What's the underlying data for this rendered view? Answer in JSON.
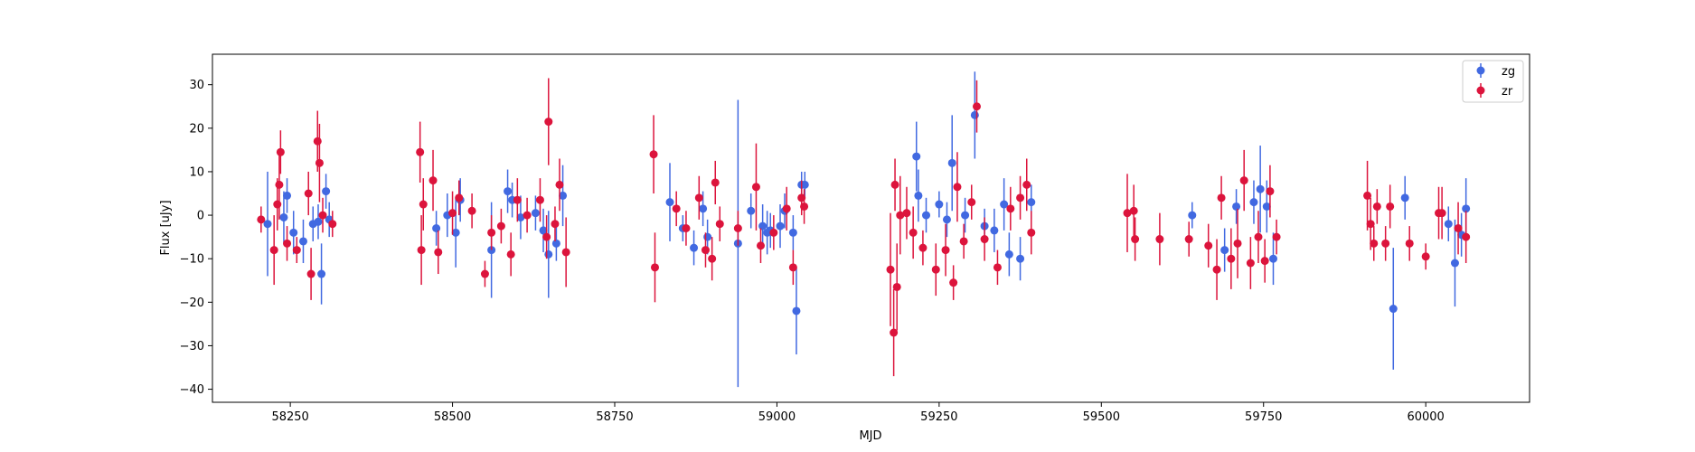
{
  "chart_data": {
    "type": "scatter",
    "title": "",
    "xlabel": "MJD",
    "ylabel": "Flux [uJy]",
    "xlim": [
      58130,
      60160
    ],
    "ylim": [
      -43,
      37
    ],
    "xticks": [
      58250,
      58500,
      58750,
      59000,
      59250,
      59500,
      59750,
      60000
    ],
    "yticks": [
      -40,
      -30,
      -20,
      -10,
      0,
      10,
      20,
      30
    ],
    "grid": false,
    "legend_position": "top-right",
    "series": [
      {
        "name": "zg",
        "color": "#4169e1",
        "points": [
          [
            58215,
            -2,
            12
          ],
          [
            58240,
            -0.5,
            6
          ],
          [
            58245,
            4.5,
            4
          ],
          [
            58255,
            -4,
            5
          ],
          [
            58270,
            -6,
            5
          ],
          [
            58285,
            -2,
            4
          ],
          [
            58293,
            -1.5,
            4
          ],
          [
            58298,
            -13.5,
            7
          ],
          [
            58305,
            5.5,
            4
          ],
          [
            58310,
            -1,
            4
          ],
          [
            58475,
            -3,
            4
          ],
          [
            58492,
            0,
            5
          ],
          [
            58505,
            -4,
            8
          ],
          [
            58512,
            3.5,
            5
          ],
          [
            58560,
            -8,
            11
          ],
          [
            58585,
            5.5,
            5
          ],
          [
            58592,
            3.5,
            4
          ],
          [
            58605,
            -0.5,
            5
          ],
          [
            58628,
            0.5,
            4
          ],
          [
            58640,
            -3.5,
            5
          ],
          [
            58648,
            -9,
            10
          ],
          [
            58660,
            -6.5,
            4
          ],
          [
            58670,
            4.5,
            7
          ],
          [
            58835,
            3,
            9
          ],
          [
            58855,
            -3,
            3
          ],
          [
            58872,
            -7.5,
            4
          ],
          [
            58886,
            1.5,
            4
          ],
          [
            58893,
            -5,
            4
          ],
          [
            58940,
            -6.5,
            33
          ],
          [
            58960,
            1,
            4
          ],
          [
            58978,
            -2.5,
            5
          ],
          [
            58985,
            -4,
            5
          ],
          [
            58990,
            -3.5,
            4
          ],
          [
            59005,
            -2.5,
            5
          ],
          [
            59012,
            1,
            4
          ],
          [
            59025,
            -4,
            4
          ],
          [
            59030,
            -22,
            10
          ],
          [
            59038,
            7,
            3
          ],
          [
            59043,
            7,
            3
          ],
          [
            59215,
            13.5,
            8
          ],
          [
            59218,
            4.5,
            6
          ],
          [
            59230,
            0,
            4
          ],
          [
            59250,
            2.5,
            3
          ],
          [
            59262,
            -1,
            4
          ],
          [
            59270,
            12,
            11
          ],
          [
            59290,
            0,
            4
          ],
          [
            59305,
            23,
            10
          ],
          [
            59320,
            -2.5,
            4
          ],
          [
            59335,
            -3.5,
            5
          ],
          [
            59350,
            2.5,
            6
          ],
          [
            59358,
            -9,
            5
          ],
          [
            59375,
            -10,
            5
          ],
          [
            59392,
            3,
            4
          ],
          [
            59640,
            0,
            3
          ],
          [
            59690,
            -8,
            5
          ],
          [
            59708,
            2,
            4
          ],
          [
            59735,
            3,
            5
          ],
          [
            59745,
            6,
            10
          ],
          [
            59755,
            2,
            6
          ],
          [
            59765,
            -10,
            6
          ],
          [
            59950,
            -21.5,
            14
          ],
          [
            59968,
            4,
            5
          ],
          [
            60035,
            -2,
            4
          ],
          [
            60045,
            -11,
            10
          ],
          [
            60055,
            -4.5,
            5
          ],
          [
            60062,
            1.5,
            7
          ]
        ]
      },
      {
        "name": "zr",
        "color": "#dc143c",
        "points": [
          [
            58205,
            -1,
            3
          ],
          [
            58225,
            -8,
            8
          ],
          [
            58230,
            2.5,
            6
          ],
          [
            58233,
            7,
            8
          ],
          [
            58235,
            14.5,
            5
          ],
          [
            58245,
            -6.5,
            4
          ],
          [
            58260,
            -8,
            3
          ],
          [
            58278,
            5,
            5
          ],
          [
            58282,
            -13.5,
            6
          ],
          [
            58292,
            17,
            7
          ],
          [
            58295,
            12,
            9
          ],
          [
            58300,
            0,
            4
          ],
          [
            58315,
            -2,
            3
          ],
          [
            58450,
            14.5,
            7
          ],
          [
            58452,
            -8,
            8
          ],
          [
            58455,
            2.5,
            6
          ],
          [
            58470,
            8,
            7
          ],
          [
            58478,
            -8.5,
            5
          ],
          [
            58500,
            0.5,
            5
          ],
          [
            58510,
            4,
            4
          ],
          [
            58530,
            1,
            4
          ],
          [
            58550,
            -13.5,
            3
          ],
          [
            58560,
            -4,
            4
          ],
          [
            58575,
            -2.5,
            4
          ],
          [
            58590,
            -9,
            5
          ],
          [
            58600,
            3.5,
            5
          ],
          [
            58615,
            0,
            4
          ],
          [
            58635,
            3.5,
            5
          ],
          [
            58645,
            -5,
            5
          ],
          [
            58648,
            21.5,
            10
          ],
          [
            58658,
            -2,
            4
          ],
          [
            58665,
            7,
            6
          ],
          [
            58675,
            -8.5,
            8
          ],
          [
            58810,
            14,
            9
          ],
          [
            58812,
            -12,
            8
          ],
          [
            58845,
            1.5,
            4
          ],
          [
            58860,
            -3,
            4
          ],
          [
            58880,
            4,
            5
          ],
          [
            58890,
            -8,
            4
          ],
          [
            58900,
            -10,
            5
          ],
          [
            58905,
            7.5,
            5
          ],
          [
            58912,
            -2,
            4
          ],
          [
            58940,
            -3,
            4
          ],
          [
            58968,
            6.5,
            10
          ],
          [
            58975,
            -7,
            4
          ],
          [
            58995,
            -4,
            4
          ],
          [
            59015,
            1.5,
            5
          ],
          [
            59025,
            -12,
            4
          ],
          [
            59038,
            4,
            4
          ],
          [
            59042,
            2,
            4
          ],
          [
            59175,
            -12.5,
            13
          ],
          [
            59180,
            -27,
            10
          ],
          [
            59182,
            7,
            6
          ],
          [
            59185,
            -16.5,
            10
          ],
          [
            59190,
            0,
            9
          ],
          [
            59200,
            0.5,
            6
          ],
          [
            59210,
            -4,
            6
          ],
          [
            59225,
            -7.5,
            4
          ],
          [
            59245,
            -12.5,
            6
          ],
          [
            59260,
            -8,
            6
          ],
          [
            59272,
            -15.5,
            4
          ],
          [
            59278,
            6.5,
            8
          ],
          [
            59288,
            -6,
            4
          ],
          [
            59300,
            3,
            4
          ],
          [
            59308,
            25,
            6
          ],
          [
            59320,
            -5.5,
            5
          ],
          [
            59340,
            -12,
            4
          ],
          [
            59360,
            1.5,
            5
          ],
          [
            59375,
            4,
            5
          ],
          [
            59385,
            7,
            6
          ],
          [
            59392,
            -4,
            5
          ],
          [
            59540,
            0.5,
            9
          ],
          [
            59550,
            1,
            6
          ],
          [
            59552,
            -5.5,
            5
          ],
          [
            59590,
            -5.5,
            6
          ],
          [
            59635,
            -5.5,
            4
          ],
          [
            59665,
            -7,
            5
          ],
          [
            59678,
            -12.5,
            7
          ],
          [
            59685,
            4,
            5
          ],
          [
            59700,
            -10,
            7
          ],
          [
            59710,
            -6.5,
            8
          ],
          [
            59720,
            8,
            7
          ],
          [
            59730,
            -11,
            6
          ],
          [
            59742,
            -5,
            6
          ],
          [
            59752,
            -10.5,
            5
          ],
          [
            59760,
            5.5,
            6
          ],
          [
            59770,
            -5,
            4
          ],
          [
            59910,
            4.5,
            8
          ],
          [
            59915,
            -2,
            6
          ],
          [
            59920,
            -6.5,
            4
          ],
          [
            59925,
            2,
            4
          ],
          [
            59938,
            -6.5,
            4
          ],
          [
            59945,
            2,
            5
          ],
          [
            59975,
            -6.5,
            4
          ],
          [
            60000,
            -9.5,
            3
          ],
          [
            60020,
            0.5,
            6
          ],
          [
            60025,
            0.5,
            6
          ],
          [
            60050,
            -3,
            6
          ],
          [
            60062,
            -5,
            6
          ]
        ]
      }
    ]
  }
}
